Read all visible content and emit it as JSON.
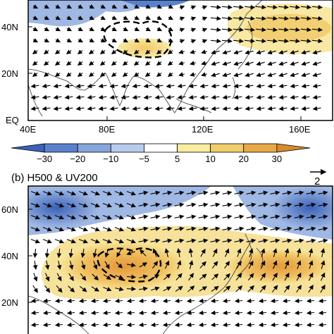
{
  "panel_a": {
    "lat_labels": [
      "40N",
      "20N",
      "EQ"
    ],
    "lon_labels": [
      "40E",
      "80E",
      "120E",
      "160E"
    ]
  },
  "colorbar": {
    "ticks": [
      "−30",
      "−20",
      "−10",
      "−5",
      "5",
      "10",
      "20",
      "30"
    ],
    "colors": [
      "#3b62b8",
      "#5a82cc",
      "#86a6dc",
      "#b9cbec",
      "#ffffff",
      "#f7eca0",
      "#f0cc6a",
      "#e8a848",
      "#d98a2e"
    ]
  },
  "panel_b": {
    "title": "(b) H500 & UV200",
    "ref_vector_label": "2",
    "lat_labels": [
      "60N",
      "40N",
      "20N"
    ]
  },
  "legend_colors": {
    "negative": "#3b62b8",
    "positive": "#e8a848",
    "contour": "#000000"
  }
}
